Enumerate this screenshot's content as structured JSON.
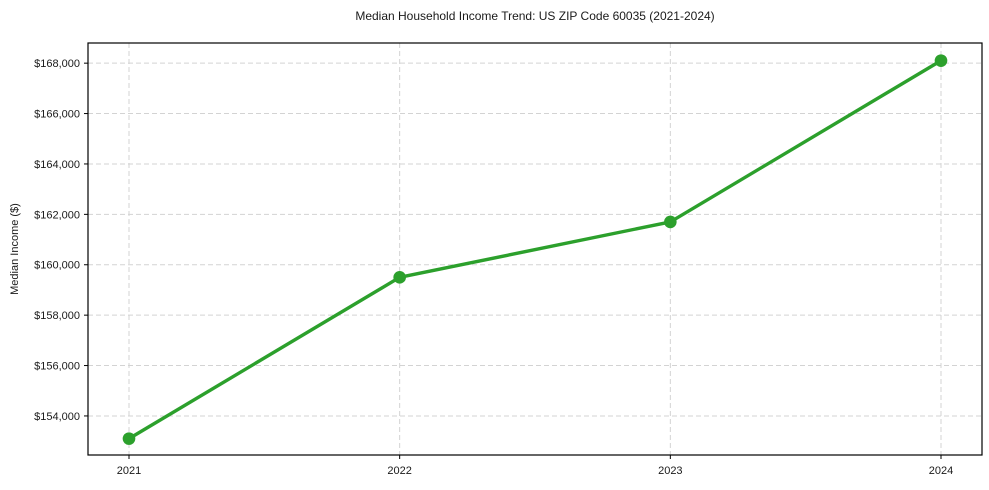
{
  "chart_data": {
    "type": "line",
    "title": "Median Household Income Trend: US ZIP Code 60035 (2021-2024)",
    "xlabel": "",
    "ylabel": "Median Income ($)",
    "categories": [
      "2021",
      "2022",
      "2023",
      "2024"
    ],
    "values": [
      153100,
      159500,
      161700,
      168100
    ],
    "value_labels": [
      "$153,100",
      "$159,500",
      "$161,700",
      "$168,100"
    ],
    "yticks": [
      154000,
      156000,
      158000,
      160000,
      162000,
      164000,
      166000,
      168000
    ],
    "ytick_labels": [
      "$154,000",
      "$156,000",
      "$158,000",
      "$160,000",
      "$162,000",
      "$164,000",
      "$166,000",
      "$168,000"
    ],
    "ylim": [
      152450,
      168800
    ],
    "grid": true,
    "grid_style": "dashed",
    "grid_color": "#d3d3d3",
    "legend": "none",
    "line_color": "#2ca02c",
    "marker": "circle",
    "axis_color": "#000000",
    "text_color": "#1a1a1a"
  }
}
